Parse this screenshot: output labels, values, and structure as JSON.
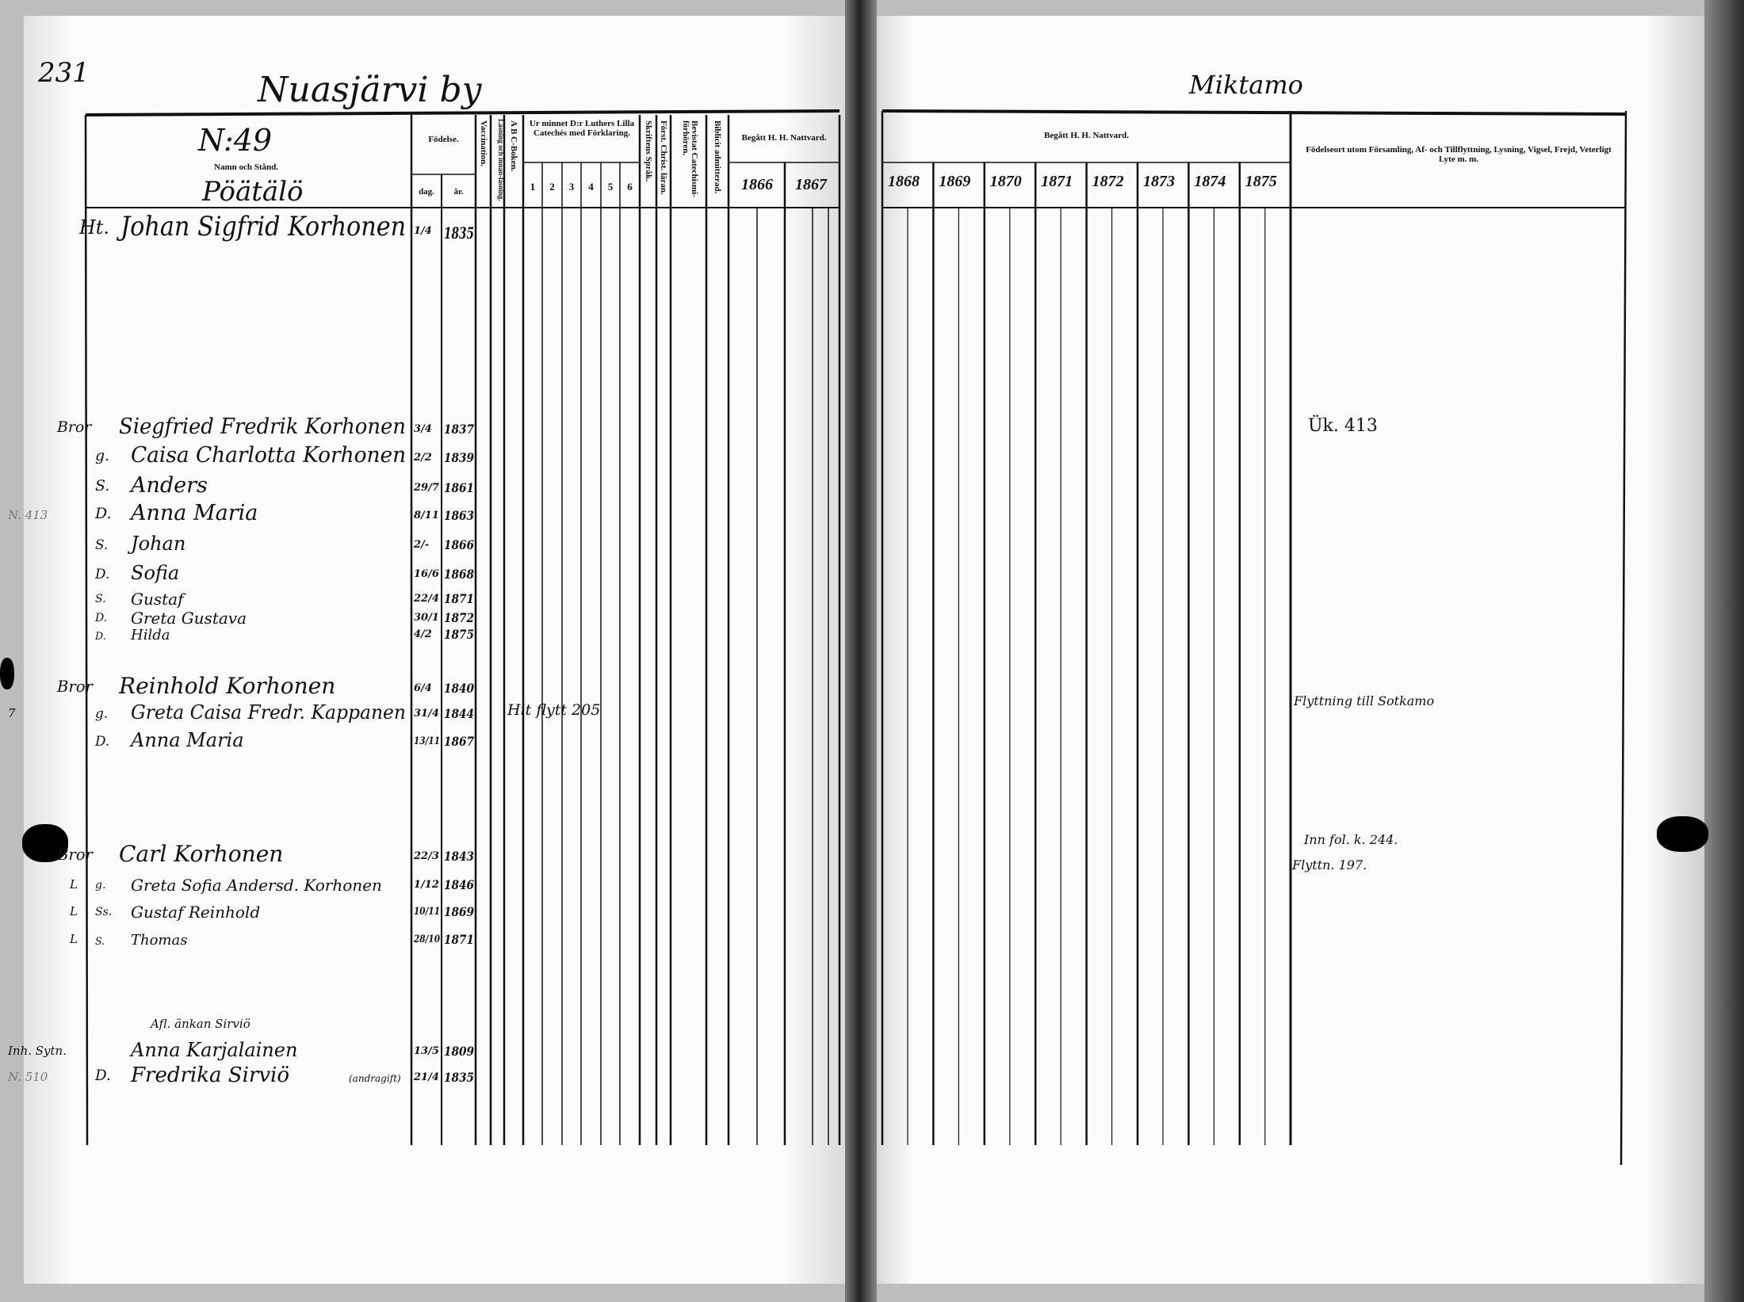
{
  "page_number": "231",
  "left_page": {
    "village": "Nuasjärvi by",
    "household_no": "N:49",
    "name_header": "Namn och Stånd.",
    "farm_name": "Pöätälö",
    "headers": {
      "birth": "Födelse.",
      "day": "dag.",
      "year": "år.",
      "vaccination": "Vaccination.",
      "reading": "Läsning och innan-läsning.",
      "abc": "A B C-Boken.",
      "catechism": "Ur minnet D:r Luthers Lilla Catechės med Förklaring.",
      "catechism_parts": [
        "1",
        "2",
        "3",
        "4",
        "5",
        "6"
      ],
      "scripture": "Skriftens Språk.",
      "christian_doctrine": "Först. Christ. läran.",
      "catechism_hearings": "Bevistat Catechismi-förhören.",
      "admitted": "Biblicit admitterad.",
      "communion": "Begått H. H. Nattvard.",
      "communion_years": [
        "1866",
        "1867"
      ]
    },
    "entries": [
      {
        "prefix": "Ht.",
        "name": "Johan Sigfrid Korhonen",
        "day": "1/4",
        "year": "1835"
      },
      {
        "prefix": "Bror",
        "name": "Siegfried Fredrik Korhonen",
        "day": "3/4",
        "year": "1837"
      },
      {
        "prefix": "g.",
        "name": "Caisa Charlotta Korhonen",
        "day": "2/2",
        "year": "1839"
      },
      {
        "prefix": "S.",
        "name": "Anders",
        "day": "29/7",
        "year": "1861"
      },
      {
        "prefix": "D.",
        "name": "Anna Maria",
        "day": "8/11",
        "year": "1863",
        "margin": "N. 413"
      },
      {
        "prefix": "S.",
        "name": "Johan",
        "day": "2/-",
        "year": "1866"
      },
      {
        "prefix": "D.",
        "name": "Sofia",
        "day": "16/6",
        "year": "1868"
      },
      {
        "prefix": "S.",
        "name": "Gustaf",
        "day": "22/4",
        "year": "1871"
      },
      {
        "prefix": "D.",
        "name": "Greta Gustava",
        "day": "30/1",
        "year": "1872"
      },
      {
        "prefix": "D.",
        "name": "Hilda",
        "day": "4/2",
        "year": "1875"
      },
      {
        "prefix": "Bror",
        "name": "Reinhold Korhonen",
        "day": "6/4",
        "year": "1840"
      },
      {
        "prefix": "g.",
        "name": "Greta Caisa Fredr. Kappanen",
        "day": "31/4",
        "year": "1844",
        "margin": "7"
      },
      {
        "prefix": "D.",
        "name": "Anna Maria",
        "day": "13/11",
        "year": "1867"
      },
      {
        "prefix": "Bror",
        "name": "Carl Korhonen",
        "day": "22/3",
        "year": "1843"
      },
      {
        "prefix": "g.",
        "name": "Greta Sofia Andersd. Korhonen",
        "day": "1/12",
        "year": "1846",
        "margin": "L"
      },
      {
        "prefix": "Ss.",
        "name": "Gustaf Reinhold",
        "day": "10/11",
        "year": "1869",
        "margin": "L"
      },
      {
        "prefix": "S.",
        "name": "Thomas",
        "day": "28/10",
        "year": "1871",
        "margin": "L"
      },
      {
        "prefix": "",
        "name": "Anna Karjalainen",
        "above": "Afl. änkan Sirviö",
        "day": "13/5",
        "year": "1809",
        "margin": "Inh. Sytn."
      },
      {
        "prefix": "D.",
        "name": "Fredrika Sirviö",
        "suffix": "(andragift)",
        "day": "21/4",
        "year": "1835",
        "margin": "N. 510"
      }
    ],
    "inline_note": "Hit flytt 205"
  },
  "right_page": {
    "village": "Miktamo",
    "communion": "Begått H. H. Nattvard.",
    "communion_years": [
      "1868",
      "1869",
      "1870",
      "1871",
      "1872",
      "1873",
      "1874",
      "1875"
    ],
    "notes_header": "Födelseort utom Församling, Af- och Tillflyttning, Lysning, Vigsel, Frejd, Veterligt Lyte m. m.",
    "notes": [
      "Ük. 413",
      "Flyttning till Sotkamo",
      "Inn fol. k. 244.",
      "Flyttn. 197."
    ]
  },
  "colors": {
    "paper": "#fbfbfa",
    "ink": "#111111",
    "border": "#bdbdbd",
    "spine": "#222222"
  }
}
